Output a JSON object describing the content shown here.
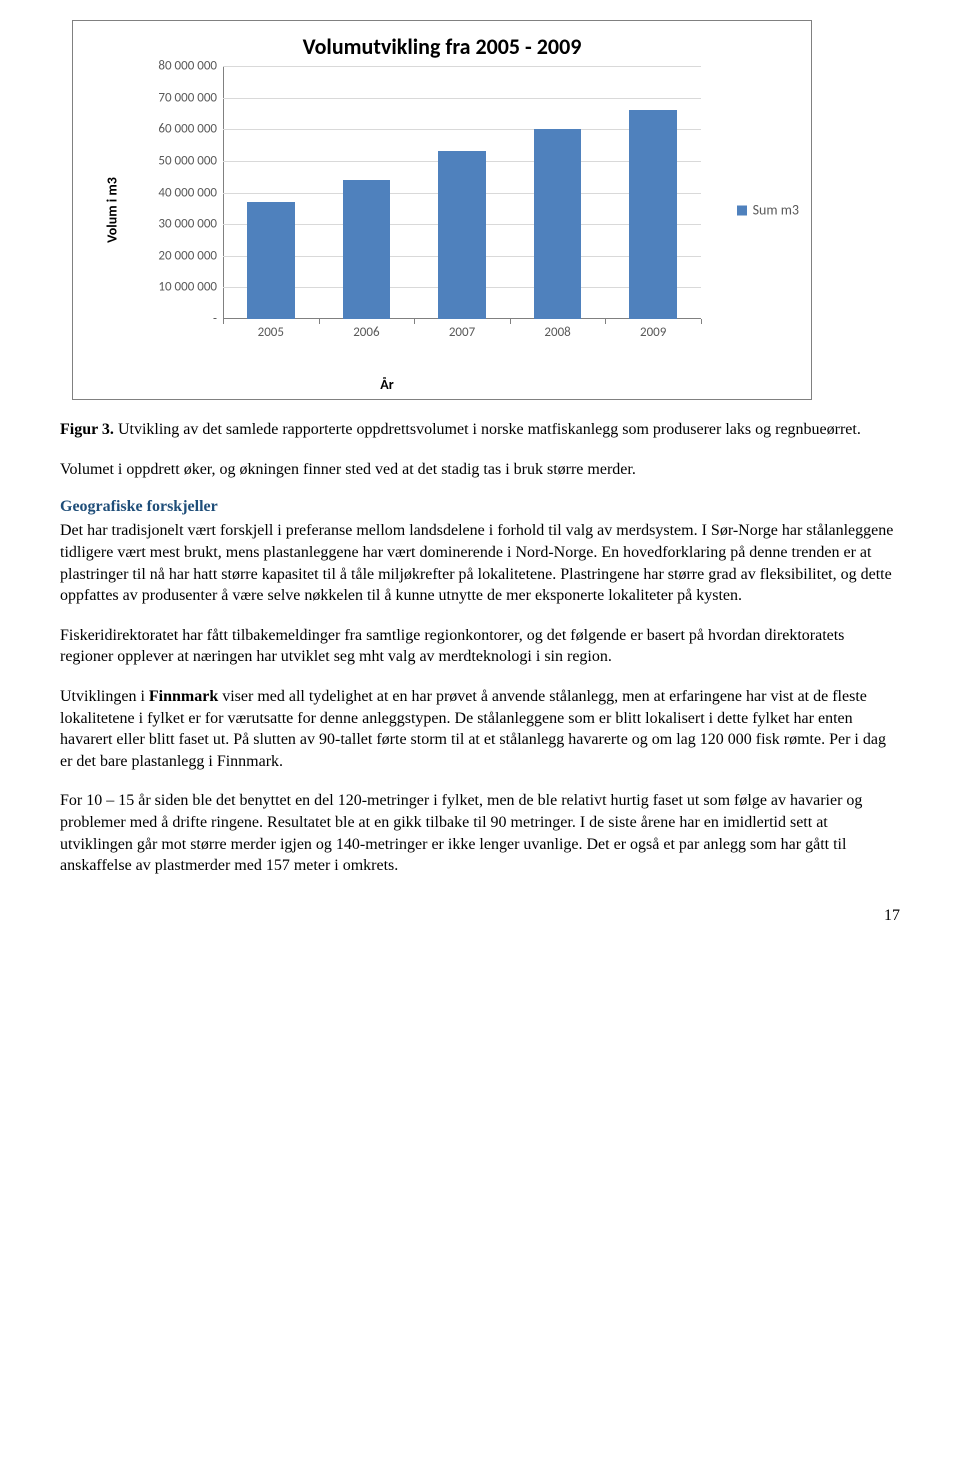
{
  "chart": {
    "type": "bar",
    "title": "Volumutvikling fra  2005 - 2009",
    "title_fontsize": 22,
    "y_axis_label": "Volum i m3",
    "x_axis_label": "År",
    "background_color": "#ffffff",
    "grid_color": "#d9d9d9",
    "axis_color": "#808080",
    "bar_color": "#4f81bd",
    "bar_width_ratio": 0.5,
    "ylim": [
      0,
      80000000
    ],
    "ytick_step": 10000000,
    "ytick_labels": [
      "-",
      "10 000 000",
      "20 000 000",
      "30 000 000",
      "40 000 000",
      "50 000 000",
      "60 000 000",
      "70 000 000",
      "80 000 000"
    ],
    "categories": [
      "2005",
      "2006",
      "2007",
      "2008",
      "2009"
    ],
    "values": [
      37000000,
      44000000,
      53000000,
      60000000,
      66000000
    ],
    "legend_label": "Sum m3",
    "tick_font_color": "#595959"
  },
  "caption": {
    "label": "Figur 3.",
    "text": "Utvikling av det samlede rapporterte oppdrettsvolumet i norske matfiskanlegg som produserer laks og regnbueørret."
  },
  "para1": "Volumet i oppdrett øker, og økningen finner sted ved at det stadig tas i bruk større merder.",
  "section_heading": "Geografiske forskjeller",
  "para2": "Det har tradisjonelt vært forskjell i preferanse mellom landsdelene i forhold til valg av merdsystem. I Sør-Norge har stålanleggene tidligere vært mest brukt, mens plastanleggene har vært dominerende i Nord-Norge. En hovedforklaring på denne trenden er at plastringer til nå har hatt større kapasitet til å tåle miljøkrefter på lokalitetene. Plastringene har større grad av fleksibilitet, og dette oppfattes av produsenter å være selve nøkkelen til å kunne utnytte de mer eksponerte lokaliteter på kysten.",
  "para3": "Fiskeridirektoratet har fått tilbakemeldinger fra samtlige regionkontorer, og det følgende er basert på hvordan direktoratets regioner opplever at næringen har utviklet seg mht valg av merdteknologi i sin region.",
  "para4_pre": "Utviklingen i ",
  "para4_bold": "Finnmark",
  "para4_post": " viser med all tydelighet at en har prøvet å anvende stålanlegg, men at erfaringene har vist at de fleste lokalitetene i fylket er for værutsatte for denne anleggstypen. De stålanleggene som er blitt lokalisert i dette fylket har enten havarert eller blitt faset ut. På slutten av 90-tallet førte storm til at et stålanlegg havarerte og om lag 120 000 fisk rømte. Per i dag er det bare plastanlegg i Finnmark.",
  "para5": "For 10 – 15 år siden ble det benyttet en del 120-metringer i fylket, men de ble relativt hurtig faset ut som følge av havarier og problemer med å drifte ringene. Resultatet ble at en gikk tilbake til 90 metringer. I de siste årene har en imidlertid sett at utviklingen går mot større merder igjen og 140-metringer er ikke lenger uvanlige. Det er også et par anlegg som har gått til anskaffelse av plastmerder med 157 meter i omkrets.",
  "page_number": "17"
}
